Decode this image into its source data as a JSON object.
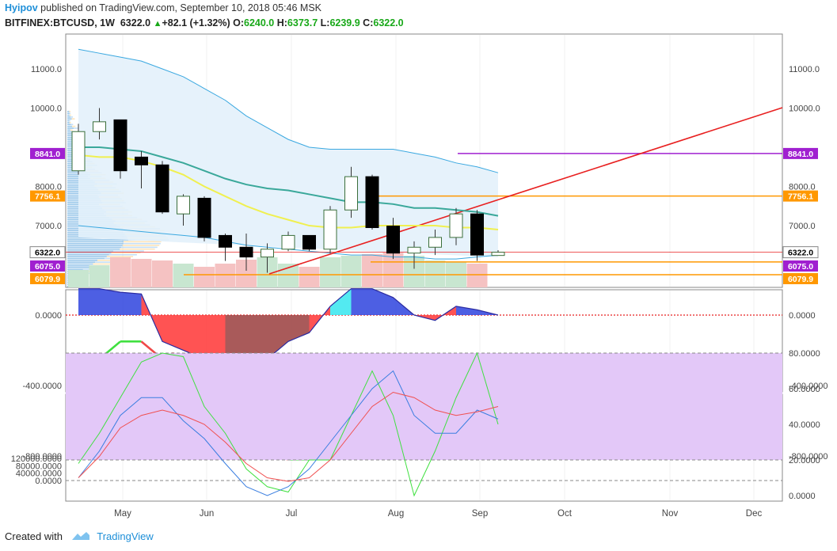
{
  "header": {
    "author": "Hyipov",
    "published_text": " published on TradingView.com, September 10, 2018 05:46 MSK",
    "symbol": "BITFINEX:BTCUSD, 1W",
    "last": "6322.0",
    "arrow": "▲",
    "change": "+82.1 (+1.32%)",
    "o_label": "O:",
    "o_val": "6240.0",
    "h_label": "H:",
    "h_val": "6373.7",
    "l_label": "L:",
    "l_val": "6239.9",
    "c_label": "C:",
    "c_val": "6322.0"
  },
  "footer": {
    "created_with": "Created with",
    "brand": "TradingView"
  },
  "colors": {
    "up": "#ffffff",
    "down": "#000000",
    "redline": "#e82020",
    "purple": "#a020d0",
    "orange": "#ff9800",
    "accent": "#1e8fd8"
  },
  "chart_data": [
    {
      "type": "candlestick",
      "title": "BITFINEX:BTCUSD, 1W",
      "x_ticks": [
        "May",
        "Jun",
        "Jul",
        "Aug",
        "Sep",
        "Oct",
        "Nov",
        "Dec"
      ],
      "y_ticks": [
        "11000.0",
        "10000.0",
        "8000.0",
        "7000.0"
      ],
      "ylim": [
        5700,
        11500
      ],
      "candles": [
        {
          "o": 8400,
          "h": 9600,
          "l": 8300,
          "c": 9400
        },
        {
          "o": 9400,
          "h": 10000,
          "l": 9200,
          "c": 9650
        },
        {
          "o": 9700,
          "h": 9700,
          "l": 8200,
          "c": 8400
        },
        {
          "o": 8750,
          "h": 8900,
          "l": 7950,
          "c": 8550
        },
        {
          "o": 8550,
          "h": 8650,
          "l": 7300,
          "c": 7350
        },
        {
          "o": 7300,
          "h": 7800,
          "l": 7000,
          "c": 7750
        },
        {
          "o": 7700,
          "h": 7750,
          "l": 6600,
          "c": 6700
        },
        {
          "o": 6750,
          "h": 6800,
          "l": 6100,
          "c": 6450
        },
        {
          "o": 6450,
          "h": 6800,
          "l": 5850,
          "c": 6200
        },
        {
          "o": 6200,
          "h": 6550,
          "l": 5800,
          "c": 6400
        },
        {
          "o": 6400,
          "h": 6850,
          "l": 6350,
          "c": 6750
        },
        {
          "o": 6750,
          "h": 6750,
          "l": 6350,
          "c": 6400
        },
        {
          "o": 6400,
          "h": 7500,
          "l": 6300,
          "c": 7400
        },
        {
          "o": 7400,
          "h": 8500,
          "l": 7200,
          "c": 8250
        },
        {
          "o": 8250,
          "h": 8300,
          "l": 6900,
          "c": 6950
        },
        {
          "o": 6990,
          "h": 7200,
          "l": 6150,
          "c": 6300
        },
        {
          "o": 6300,
          "h": 6600,
          "l": 5900,
          "c": 6450
        },
        {
          "o": 6450,
          "h": 6900,
          "l": 6250,
          "c": 6700
        },
        {
          "o": 6700,
          "h": 7450,
          "l": 6500,
          "c": 7300
        },
        {
          "o": 7300,
          "h": 7400,
          "l": 6100,
          "c": 6250
        },
        {
          "o": 6240,
          "h": 6373.7,
          "l": 6239.9,
          "c": 6322
        }
      ],
      "price_labels": [
        {
          "text": "8841.0",
          "value": 8841,
          "color": "#a020d0"
        },
        {
          "text": "7756.1",
          "value": 7756.1,
          "color": "#ff9800"
        },
        {
          "text": "6322.0",
          "value": 6322,
          "color": "#ffffff"
        },
        {
          "text": "6075.0",
          "value": 6075,
          "color": "#a020d0"
        },
        {
          "text": "6079.9",
          "value": 6079.9,
          "color": "#ff9800"
        }
      ],
      "ma_teal": [
        9000,
        9000,
        8950,
        8900,
        8750,
        8600,
        8400,
        8200,
        8050,
        7950,
        7900,
        7800,
        7700,
        7600,
        7600,
        7550,
        7450,
        7450,
        7400,
        7350,
        7250
      ],
      "ma_yellow": [
        8800,
        8750,
        8750,
        8650,
        8500,
        8300,
        8000,
        7750,
        7500,
        7300,
        7150,
        7000,
        6950,
        6950,
        7000,
        7000,
        7000,
        7000,
        6950,
        6950,
        6900
      ],
      "bb_upper": [
        11500,
        11400,
        11300,
        11200,
        11000,
        10800,
        10500,
        10200,
        9800,
        9500,
        9200,
        9000,
        8950,
        8950,
        8950,
        8950,
        8850,
        8750,
        8600,
        8500,
        8350
      ]
    },
    {
      "type": "line",
      "title": "",
      "y_ticks": [
        "0.0000",
        "-400.0000",
        "-800.0000"
      ],
      "ylim": [
        -950,
        280
      ],
      "series": [
        {
          "values": [
            150,
            150,
            130,
            120,
            -150,
            -200,
            -250,
            -300,
            -320,
            -250,
            -150,
            -100,
            50,
            150,
            150,
            100,
            0,
            -30,
            50,
            30,
            0
          ]
        },
        {
          "values": [
            -350,
            -250,
            -150,
            -150,
            -250,
            -380,
            -450,
            -600,
            -750,
            -800,
            -820,
            -820,
            -700,
            -480,
            -480,
            -550,
            -550,
            -550,
            -450,
            -480,
            -480
          ]
        },
        {
          "values": [
            -350,
            -320,
            -280,
            -230,
            -250,
            -350,
            -450,
            -560,
            -680,
            -760,
            -800,
            -780,
            -720,
            -640,
            -600,
            -560,
            -540,
            -520,
            -500,
            -480,
            -470
          ]
        }
      ]
    },
    {
      "type": "line",
      "title": "",
      "y_ticks": [
        "120000.0000",
        "80000.0000",
        "40000.0000",
        "0.0000"
      ],
      "y_ticks_right": [
        "80.0000",
        "60.0000",
        "40.0000",
        "20.0000",
        "0.0000"
      ],
      "series": [
        {
          "values": [
            18,
            35,
            55,
            75,
            80,
            78,
            50,
            35,
            15,
            5,
            2,
            20,
            20,
            45,
            70,
            45,
            0,
            25,
            55,
            80,
            40
          ]
        },
        {
          "values": [
            10,
            25,
            45,
            55,
            55,
            42,
            32,
            18,
            5,
            0,
            5,
            15,
            30,
            45,
            60,
            70,
            45,
            35,
            35,
            48,
            43
          ]
        },
        {
          "values": [
            10,
            22,
            38,
            45,
            48,
            45,
            40,
            30,
            18,
            10,
            8,
            10,
            20,
            35,
            50,
            58,
            55,
            48,
            45,
            47,
            50
          ]
        }
      ]
    }
  ]
}
